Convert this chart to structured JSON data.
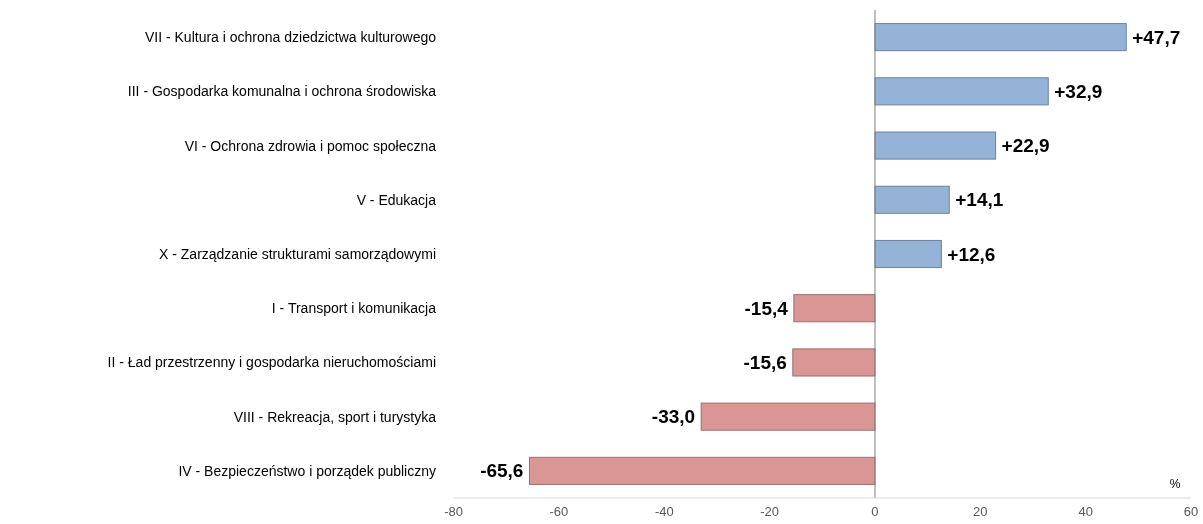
{
  "chart_data": {
    "type": "bar",
    "orientation": "horizontal",
    "xlabel": "%",
    "categories": [
      "VII - Kultura i ochrona dziedzictwa kulturowego",
      "III - Gospodarka komunalna i ochrona środowiska",
      "VI - Ochrona zdrowia i pomoc społeczna",
      "V - Edukacja",
      "X - Zarządzanie strukturami samorządowymi",
      "I - Transport i komunikacja",
      "II - Ład przestrzenny i gospodarka nieruchomościami",
      "VIII - Rekreacja, sport i turystyka",
      "IV - Bezpieczeństwo i porządek publiczny"
    ],
    "values": [
      47.7,
      32.9,
      22.9,
      14.1,
      12.6,
      -15.4,
      -15.6,
      -33.0,
      -65.6
    ],
    "value_labels": [
      "+47,7",
      "+32,9",
      "+22,9",
      "+14,1",
      "+12,6",
      "-15,4",
      "-15,6",
      "-33,0",
      "-65,6"
    ],
    "colors": [
      "#95b3d7",
      "#95b3d7",
      "#95b3d7",
      "#95b3d7",
      "#95b3d7",
      "#d99694",
      "#d99694",
      "#d99694",
      "#d99694"
    ],
    "xlim": [
      -80,
      60
    ],
    "xticks": [
      -80,
      -60,
      -40,
      -20,
      0,
      20,
      40,
      60
    ]
  }
}
